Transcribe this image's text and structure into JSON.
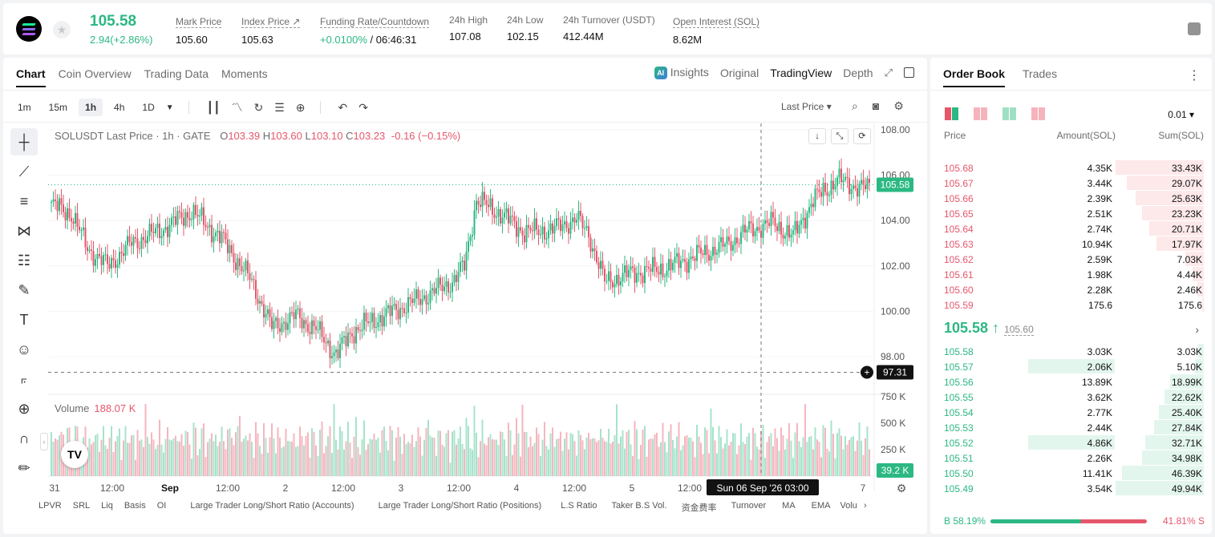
{
  "header": {
    "price": "105.58",
    "change": "2.94(+2.86%)",
    "stats": [
      {
        "label": "Mark Price",
        "value": "105.60"
      },
      {
        "label": "Index Price ↗",
        "value": "105.63"
      },
      {
        "label": "Funding Rate/Countdown",
        "value_green": "+0.0100%",
        "value_rest": " / 06:46:31"
      },
      {
        "label": "24h High",
        "value": "107.08"
      },
      {
        "label": "24h Low",
        "value": "102.15"
      },
      {
        "label": "24h Turnover (USDT)",
        "value": "412.44M"
      },
      {
        "label": "Open Interest (SOL)",
        "value": "8.62M"
      }
    ]
  },
  "chart_tabs": [
    "Chart",
    "Coin Overview",
    "Trading Data",
    "Moments"
  ],
  "view_tabs": {
    "insights": "Insights",
    "original": "Original",
    "tradingview": "TradingView",
    "depth": "Depth"
  },
  "intervals": [
    "1m",
    "15m",
    "1h",
    "4h",
    "1D"
  ],
  "selected_interval": "1h",
  "price_source": "Last Price",
  "legend": {
    "symbol": "SOLUSDT Last Price · 1h · GATE",
    "o": "103.39",
    "h": "103.60",
    "l": "103.10",
    "c": "103.23",
    "chg": "-0.16 (−0.15%)"
  },
  "volume_legend": {
    "label": "Volume",
    "value": "188.07 K"
  },
  "price_axis": [
    "108.00",
    "106.00",
    "104.00",
    "102.00",
    "100.00",
    "98.00"
  ],
  "volume_axis": [
    "750 K",
    "500 K",
    "250 K"
  ],
  "price_tag": "105.58",
  "crosshair_tag": "97.31",
  "volume_tag": "39.2 K",
  "time_axis": [
    "31",
    "12:00",
    "Sep",
    "12:00",
    "2",
    "12:00",
    "3",
    "12:00",
    "4",
    "12:00",
    "5",
    "12:00",
    "7"
  ],
  "crosshair_time": "Sun 06 Sep '26   03:00",
  "indicators": [
    "LPVR",
    "SRL",
    "Liq",
    "Basis",
    "OI",
    "Large Trader Long/Short Ratio (Accounts)",
    "Large Trader Long/Short Ratio (Positions)",
    "L.S Ratio",
    "Taker B.S Vol.",
    "资金费率",
    "Turnover",
    "MA",
    "EMA",
    "Volu"
  ],
  "order_book": {
    "tabs": [
      "Order Book",
      "Trades"
    ],
    "precision": "0.01",
    "headers": {
      "price": "Price",
      "amount": "Amount(SOL)",
      "sum": "Sum(SOL)"
    },
    "asks": [
      {
        "price": "105.68",
        "amount": "4.35K",
        "sum": "33.43K",
        "depth": 1.0,
        "big": 0
      },
      {
        "price": "105.67",
        "amount": "3.44K",
        "sum": "29.07K",
        "depth": 0.87,
        "big": 0
      },
      {
        "price": "105.66",
        "amount": "2.39K",
        "sum": "25.63K",
        "depth": 0.77,
        "big": 0
      },
      {
        "price": "105.65",
        "amount": "2.51K",
        "sum": "23.23K",
        "depth": 0.7,
        "big": 0
      },
      {
        "price": "105.64",
        "amount": "2.74K",
        "sum": "20.71K",
        "depth": 0.62,
        "big": 0
      },
      {
        "price": "105.63",
        "amount": "10.94K",
        "sum": "17.97K",
        "depth": 0.54,
        "big": 0
      },
      {
        "price": "105.62",
        "amount": "2.59K",
        "sum": "7.03K",
        "depth": 0.21,
        "big": 0
      },
      {
        "price": "105.61",
        "amount": "1.98K",
        "sum": "4.44K",
        "depth": 0.13,
        "big": 0
      },
      {
        "price": "105.60",
        "amount": "2.28K",
        "sum": "2.46K",
        "depth": 0.07,
        "big": 0
      },
      {
        "price": "105.59",
        "amount": "175.6",
        "sum": "175.6",
        "depth": 0.02,
        "big": 0
      }
    ],
    "mid_price": "105.58 ↑",
    "mark_price": "105.60",
    "bids": [
      {
        "price": "105.58",
        "amount": "3.03K",
        "sum": "3.03K",
        "depth": 0.06,
        "big": 0
      },
      {
        "price": "105.57",
        "amount": "2.06K",
        "sum": "5.10K",
        "depth": 0.1,
        "big": 1
      },
      {
        "price": "105.56",
        "amount": "13.89K",
        "sum": "18.99K",
        "depth": 0.38,
        "big": 0
      },
      {
        "price": "105.55",
        "amount": "3.62K",
        "sum": "22.62K",
        "depth": 0.45,
        "big": 0
      },
      {
        "price": "105.54",
        "amount": "2.77K",
        "sum": "25.40K",
        "depth": 0.51,
        "big": 0
      },
      {
        "price": "105.53",
        "amount": "2.44K",
        "sum": "27.84K",
        "depth": 0.56,
        "big": 0
      },
      {
        "price": "105.52",
        "amount": "4.86K",
        "sum": "32.71K",
        "depth": 0.66,
        "big": 1
      },
      {
        "price": "105.51",
        "amount": "2.26K",
        "sum": "34.98K",
        "depth": 0.7,
        "big": 0
      },
      {
        "price": "105.50",
        "amount": "11.41K",
        "sum": "46.39K",
        "depth": 0.93,
        "big": 0
      },
      {
        "price": "105.49",
        "amount": "3.54K",
        "sum": "49.94K",
        "depth": 1.0,
        "big": 0
      }
    ],
    "buy_ratio": "B 58.19%",
    "sell_ratio": "41.81% S",
    "buy_fraction": 0.5819
  },
  "colors": {
    "up": "#2cb883",
    "down": "#e5576b"
  }
}
